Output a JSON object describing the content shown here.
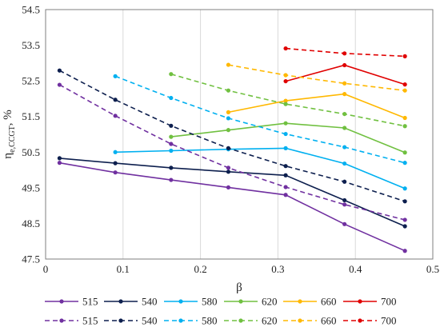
{
  "chart_data": {
    "type": "line",
    "xlabel": "β",
    "ylabel": {
      "main": "η",
      "sub": "e,CCGT",
      "suffix": ", %"
    },
    "xlim": [
      0,
      0.5
    ],
    "ylim": [
      47.5,
      54.5
    ],
    "xticks": [
      "0",
      "0.1",
      "0.2",
      "0.3",
      "0.4",
      "0.5"
    ],
    "yticks": [
      "47.5",
      "48.5",
      "49.5",
      "50.5",
      "51.5",
      "52.5",
      "53.5",
      "54.5"
    ],
    "grid": "vertical",
    "legend_position": "bottom",
    "series": [
      {
        "name": "515",
        "color": "#7030a0",
        "dash": false,
        "x": [
          0.018,
          0.09,
          0.162,
          0.236,
          0.31,
          0.386,
          0.464
        ],
        "y": [
          50.2,
          49.93,
          49.72,
          49.51,
          49.3,
          48.48,
          47.73
        ]
      },
      {
        "name": "540",
        "color": "#0d1f4e",
        "dash": false,
        "x": [
          0.018,
          0.09,
          0.162,
          0.236,
          0.31,
          0.386,
          0.464
        ],
        "y": [
          50.33,
          50.19,
          50.06,
          49.95,
          49.85,
          49.15,
          48.42
        ]
      },
      {
        "name": "580",
        "color": "#00b0f0",
        "dash": false,
        "x": [
          0.09,
          0.162,
          0.236,
          0.31,
          0.386,
          0.464
        ],
        "y": [
          50.5,
          50.54,
          50.58,
          50.61,
          50.18,
          49.48
        ]
      },
      {
        "name": "620",
        "color": "#70c040",
        "dash": false,
        "x": [
          0.162,
          0.236,
          0.31,
          0.386,
          0.464
        ],
        "y": [
          50.93,
          51.12,
          51.31,
          51.18,
          50.49
        ]
      },
      {
        "name": "660",
        "color": "#ffb800",
        "dash": false,
        "x": [
          0.236,
          0.31,
          0.386,
          0.464
        ],
        "y": [
          51.62,
          51.94,
          52.13,
          51.46
        ]
      },
      {
        "name": "700",
        "color": "#e00000",
        "dash": false,
        "x": [
          0.31,
          0.386,
          0.464
        ],
        "y": [
          52.49,
          52.94,
          52.4
        ]
      },
      {
        "name": "515",
        "color": "#7030a0",
        "dash": true,
        "x": [
          0.018,
          0.09,
          0.162,
          0.236,
          0.31,
          0.386,
          0.464
        ],
        "y": [
          52.39,
          51.52,
          50.73,
          50.06,
          49.52,
          49.03,
          48.6
        ]
      },
      {
        "name": "540",
        "color": "#0d1f4e",
        "dash": true,
        "x": [
          0.018,
          0.09,
          0.162,
          0.236,
          0.31,
          0.386,
          0.464
        ],
        "y": [
          52.79,
          51.97,
          51.24,
          50.61,
          50.11,
          49.67,
          49.12
        ]
      },
      {
        "name": "580",
        "color": "#00b0f0",
        "dash": true,
        "x": [
          0.09,
          0.162,
          0.236,
          0.31,
          0.386,
          0.464
        ],
        "y": [
          52.63,
          52.02,
          51.45,
          51.01,
          50.64,
          50.2
        ]
      },
      {
        "name": "620",
        "color": "#70c040",
        "dash": true,
        "x": [
          0.162,
          0.236,
          0.31,
          0.386,
          0.464
        ],
        "y": [
          52.69,
          52.23,
          51.85,
          51.57,
          51.23
        ]
      },
      {
        "name": "660",
        "color": "#ffb800",
        "dash": true,
        "x": [
          0.236,
          0.31,
          0.386,
          0.464
        ],
        "y": [
          52.95,
          52.66,
          52.43,
          52.23
        ]
      },
      {
        "name": "700",
        "color": "#e00000",
        "dash": true,
        "x": [
          0.31,
          0.386,
          0.464
        ],
        "y": [
          53.41,
          53.27,
          53.19
        ]
      }
    ]
  }
}
